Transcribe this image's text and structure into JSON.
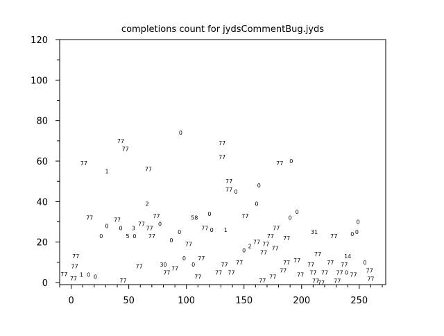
{
  "chart_data": {
    "type": "scatter",
    "title": "completions count for jydsCommentBug.jyds",
    "xlabel": "",
    "ylabel": "",
    "xlim": [
      -10,
      273
    ],
    "ylim": [
      -1,
      120
    ],
    "xticks": [
      0,
      50,
      100,
      150,
      200,
      250
    ],
    "yticks": [
      0,
      20,
      40,
      60,
      80,
      100,
      120
    ],
    "grid": false,
    "marker": "text label",
    "points": [
      {
        "x": 11,
        "y": 59,
        "label": "77"
      },
      {
        "x": 31,
        "y": 55,
        "label": "1"
      },
      {
        "x": 43,
        "y": 70,
        "label": "77"
      },
      {
        "x": 47,
        "y": 67,
        "label": "77"
      },
      {
        "x": 67,
        "y": 56,
        "label": "77"
      },
      {
        "x": 95,
        "y": 74,
        "label": "0"
      },
      {
        "x": 66,
        "y": 39,
        "label": "2"
      },
      {
        "x": 16,
        "y": 32,
        "label": "77"
      },
      {
        "x": 31,
        "y": 28,
        "label": "0"
      },
      {
        "x": 40,
        "y": 31,
        "label": "77"
      },
      {
        "x": 43,
        "y": 28,
        "label": "0"
      },
      {
        "x": 26,
        "y": 23,
        "label": "0"
      },
      {
        "x": 74,
        "y": 33,
        "label": "77"
      },
      {
        "x": 77,
        "y": 30,
        "label": "0"
      },
      {
        "x": 61,
        "y": 29,
        "label": "77"
      },
      {
        "x": 57,
        "y": 27,
        "label": "3"
      },
      {
        "x": 65,
        "y": 27,
        "label": "77"
      },
      {
        "x": 70,
        "y": 26,
        "label": "77"
      },
      {
        "x": 49,
        "y": 23,
        "label": "5"
      },
      {
        "x": 55,
        "y": 24,
        "label": "0"
      },
      {
        "x": 87,
        "y": 21,
        "label": "0"
      },
      {
        "x": 94,
        "y": 25,
        "label": "0"
      },
      {
        "x": 107,
        "y": 32,
        "label": "58"
      },
      {
        "x": 120,
        "y": 34,
        "label": "0"
      },
      {
        "x": 116,
        "y": 27,
        "label": "77"
      },
      {
        "x": 122,
        "y": 26,
        "label": "0"
      },
      {
        "x": 102,
        "y": 19,
        "label": "77"
      },
      {
        "x": 4,
        "y": 13,
        "label": "77"
      },
      {
        "x": 3,
        "y": 8,
        "label": "77"
      },
      {
        "x": 9,
        "y": 4,
        "label": "1"
      },
      {
        "x": 15,
        "y": 4,
        "label": "0"
      },
      {
        "x": 21,
        "y": 3,
        "label": "0"
      },
      {
        "x": 2,
        "y": 2,
        "label": "77"
      },
      {
        "x": 1,
        "y": 0,
        "label": "77"
      },
      {
        "x": 45,
        "y": 0,
        "label": "77"
      },
      {
        "x": 59,
        "y": 8,
        "label": "77"
      },
      {
        "x": 80,
        "y": 9,
        "label": "30"
      },
      {
        "x": 83,
        "y": 6,
        "label": "77"
      },
      {
        "x": 90,
        "y": 7,
        "label": "77"
      },
      {
        "x": 98,
        "y": 12,
        "label": "0"
      },
      {
        "x": 106,
        "y": 9,
        "label": "0"
      },
      {
        "x": 113,
        "y": 12,
        "label": "77"
      },
      {
        "x": 110,
        "y": 3,
        "label": "77"
      },
      {
        "x": 128,
        "y": 5,
        "label": "77"
      },
      {
        "x": 133,
        "y": 9,
        "label": "77"
      },
      {
        "x": 131,
        "y": 69,
        "label": "77"
      },
      {
        "x": 131,
        "y": 62,
        "label": "77"
      },
      {
        "x": 181,
        "y": 59,
        "label": "77"
      },
      {
        "x": 191,
        "y": 60,
        "label": "0"
      },
      {
        "x": 137,
        "y": 50,
        "label": "77"
      },
      {
        "x": 137,
        "y": 49,
        "label": "77"
      },
      {
        "x": 143,
        "y": 45,
        "label": "0"
      },
      {
        "x": 163,
        "y": 48,
        "label": "0"
      },
      {
        "x": 161,
        "y": 39,
        "label": "0"
      },
      {
        "x": 151,
        "y": 33,
        "label": "77"
      },
      {
        "x": 196,
        "y": 35,
        "label": "0"
      },
      {
        "x": 190,
        "y": 32,
        "label": "0"
      },
      {
        "x": 134,
        "y": 26,
        "label": "1"
      },
      {
        "x": 211,
        "y": 25,
        "label": "31"
      },
      {
        "x": 228,
        "y": 23,
        "label": "77"
      },
      {
        "x": 244,
        "y": 24,
        "label": "0"
      },
      {
        "x": 248,
        "y": 25,
        "label": "0"
      },
      {
        "x": 249,
        "y": 30,
        "label": "0"
      },
      {
        "x": 178,
        "y": 27,
        "label": "77"
      },
      {
        "x": 173,
        "y": 24,
        "label": "77"
      },
      {
        "x": 187,
        "y": 22,
        "label": "77"
      },
      {
        "x": 150,
        "y": 16,
        "label": "0"
      },
      {
        "x": 155,
        "y": 18,
        "label": "2"
      },
      {
        "x": 158,
        "y": 20,
        "label": "77"
      },
      {
        "x": 169,
        "y": 19,
        "label": "77"
      },
      {
        "x": 167,
        "y": 16,
        "label": "77"
      },
      {
        "x": 177,
        "y": 17,
        "label": "77"
      },
      {
        "x": 214,
        "y": 14,
        "label": "77"
      },
      {
        "x": 240,
        "y": 13,
        "label": "14"
      },
      {
        "x": 255,
        "y": 10,
        "label": "0"
      },
      {
        "x": 146,
        "y": 10,
        "label": "77"
      },
      {
        "x": 187,
        "y": 10,
        "label": "77"
      },
      {
        "x": 193,
        "y": 11,
        "label": "77"
      },
      {
        "x": 208,
        "y": 9,
        "label": "77"
      },
      {
        "x": 210,
        "y": 7,
        "label": "77"
      },
      {
        "x": 225,
        "y": 10,
        "label": "77"
      },
      {
        "x": 237,
        "y": 9,
        "label": "77"
      },
      {
        "x": 139,
        "y": 5,
        "label": "77"
      },
      {
        "x": 184,
        "y": 7,
        "label": "77"
      },
      {
        "x": 199,
        "y": 4,
        "label": "77"
      },
      {
        "x": 205,
        "y": 5,
        "label": "77"
      },
      {
        "x": 220,
        "y": 5,
        "label": "77"
      },
      {
        "x": 233,
        "y": 5,
        "label": "77"
      },
      {
        "x": 239,
        "y": 6,
        "label": "0"
      },
      {
        "x": 242,
        "y": 4,
        "label": "77"
      },
      {
        "x": 231,
        "y": 3,
        "label": "77"
      },
      {
        "x": 259,
        "y": 6,
        "label": "77"
      },
      {
        "x": 260,
        "y": 5,
        "label": "77"
      },
      {
        "x": 166,
        "y": 1,
        "label": "77"
      },
      {
        "x": 172,
        "y": 3,
        "label": "77"
      },
      {
        "x": 217,
        "y": 0,
        "label": "77"
      }
    ]
  }
}
